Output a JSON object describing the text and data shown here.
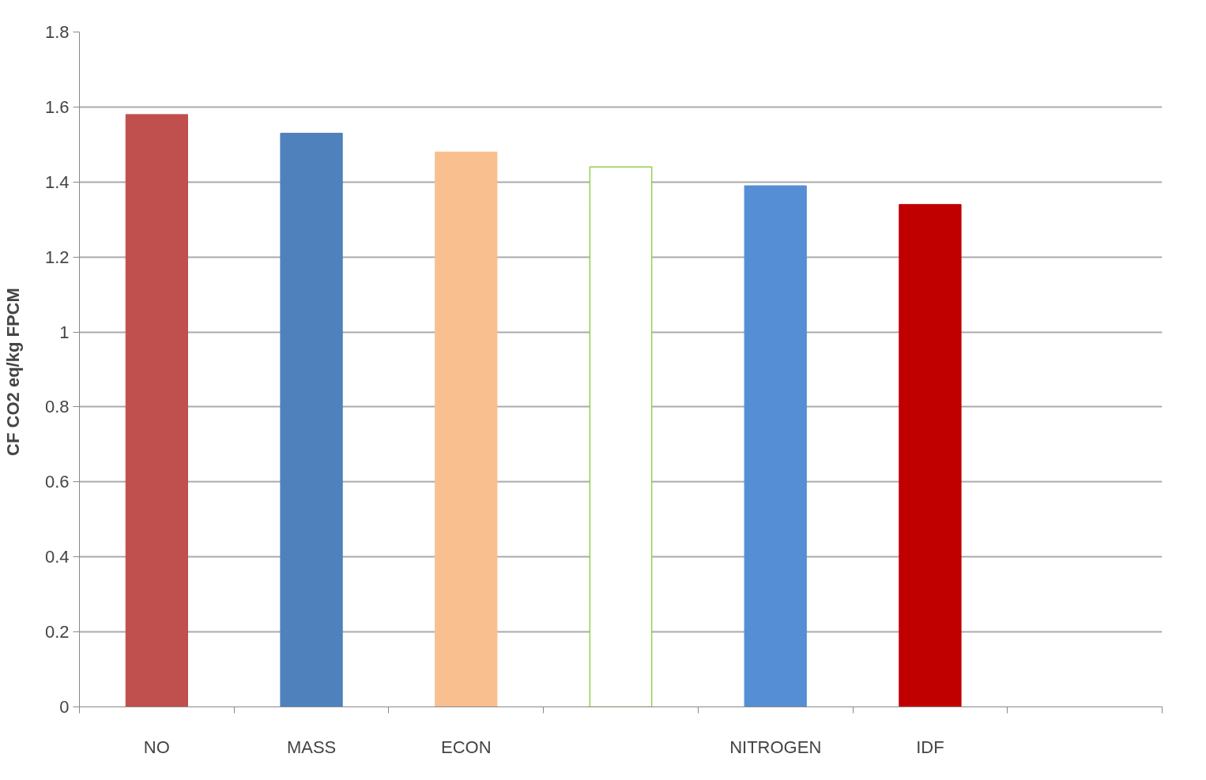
{
  "chart_data": {
    "type": "bar",
    "ylabel": "CF  CO2 eq/kg FPCM",
    "categories": [
      "NO",
      "MASS",
      "ECON",
      null,
      "NITROGEN",
      "IDF",
      null
    ],
    "values": [
      1.58,
      1.53,
      1.48,
      1.44,
      1.39,
      1.34,
      null
    ],
    "colors": [
      "#c0504d",
      "#4f81bd",
      "#f9bf8f",
      "#92d050",
      "#558ed5",
      "#c00000",
      "#ffffff"
    ],
    "ylim": [
      0,
      1.8
    ],
    "yticks": [
      0,
      0.2,
      0.4,
      0.6,
      0.8,
      1,
      1.2,
      1.4,
      1.6,
      1.8
    ],
    "grid": "y"
  }
}
